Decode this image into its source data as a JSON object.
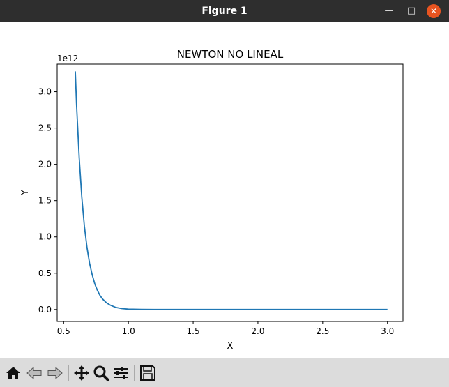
{
  "window": {
    "title": "Figure 1",
    "minimize_icon": "minimize-icon",
    "maximize_icon": "maximize-icon",
    "close_icon": "close-icon",
    "close_color": "#e95420"
  },
  "toolbar": {
    "icons": [
      "home-icon",
      "back-arrow-icon",
      "forward-arrow-icon",
      "pan-icon",
      "zoom-icon",
      "configure-subplots-icon",
      "save-icon"
    ]
  },
  "chart_data": {
    "type": "line",
    "title": "NEWTON NO LINEAL",
    "xlabel": "X",
    "ylabel": "Y",
    "offset_text": "1e12",
    "xlim": [
      0.45,
      3.12
    ],
    "ylim": [
      -0.165,
      3.38
    ],
    "xticks": [
      0.5,
      1.0,
      1.5,
      2.0,
      2.5,
      3.0
    ],
    "xtick_labels": [
      "0.5",
      "1.0",
      "1.5",
      "2.0",
      "2.5",
      "3.0"
    ],
    "yticks": [
      0.0,
      0.5,
      1.0,
      1.5,
      2.0,
      2.5,
      3.0
    ],
    "ytick_labels": [
      "0.0",
      "0.5",
      "1.0",
      "1.5",
      "2.0",
      "2.5",
      "3.0"
    ],
    "grid": false,
    "legend": "none",
    "color": "#1f77b4",
    "series": [
      {
        "x": [
          0.59,
          0.6,
          0.62,
          0.64,
          0.66,
          0.68,
          0.7,
          0.72,
          0.74,
          0.76,
          0.78,
          0.8,
          0.83,
          0.86,
          0.9,
          0.95,
          1.0,
          1.1,
          1.2,
          1.5,
          2.0,
          2.5,
          3.0
        ],
        "y": [
          3.28,
          2.8,
          2.09,
          1.55,
          1.15,
          0.86,
          0.64,
          0.48,
          0.355,
          0.265,
          0.195,
          0.145,
          0.093,
          0.06,
          0.03,
          0.013,
          0.005,
          0.0015,
          0.0005,
          0.0001,
          0.0,
          0.0,
          0.0
        ]
      }
    ]
  }
}
